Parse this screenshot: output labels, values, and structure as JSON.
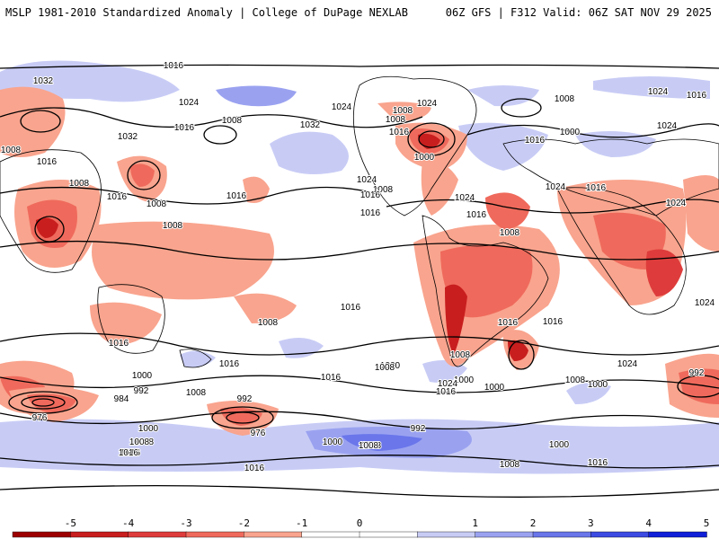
{
  "header": {
    "left_title": "MSLP 1981-2010 Standardized Anomaly | College of DuPage NEXLAB",
    "right_title": "06Z GFS | F312 Valid: 06Z SAT NOV 29 2025"
  },
  "colors": {
    "neg_strong": "#b51414",
    "neg_mid": "#e34a4a",
    "neg_light": "#f5a08c",
    "neutral": "#ffffff",
    "pos_light": "#c8ccf5",
    "pos_mid": "#8e96ee",
    "pos_strong": "#4c5ae4",
    "isobar": "#000000",
    "coast": "#000000"
  },
  "map": {
    "contour_labels": [
      "1016",
      "1032",
      "1024",
      "1008",
      "1016",
      "1024",
      "1032",
      "1008",
      "1008",
      "1016",
      "1024",
      "1032",
      "1008",
      "1016",
      "1008",
      "1016",
      "1008",
      "1016",
      "1024",
      "1008",
      "1016",
      "1024",
      "1000",
      "1024",
      "1016",
      "1024",
      "1024",
      "1008",
      "1000",
      "1016",
      "1024",
      "1016",
      "1016",
      "1008",
      "1016",
      "1008",
      "1016",
      "1008",
      "1016",
      "1024",
      "1008",
      "1016",
      "1000",
      "1000",
      "1024",
      "1008",
      "992",
      "1008",
      "1000",
      "1016",
      "1000",
      "1016",
      "1008",
      "1000",
      "976",
      "984",
      "992",
      "1000",
      "1008",
      "992",
      "976",
      "1000",
      "1008",
      "1016",
      "1008",
      "1016",
      "1000",
      "1008",
      "992",
      "1016",
      "1008",
      "1016",
      "1016",
      "1016",
      "1024"
    ]
  },
  "colorbar": {
    "ticks": [
      "-5",
      "-4",
      "-3",
      "-2",
      "-1",
      "0",
      "1",
      "2",
      "3",
      "4",
      "5"
    ],
    "bins": [
      "#9c0000",
      "#c81e1e",
      "#de3c3c",
      "#ef6a5c",
      "#f9a48e",
      "#ffffff",
      "#ffffff",
      "#c8ccf5",
      "#9aa2f0",
      "#6a76ea",
      "#3c4ce2",
      "#1020d8"
    ]
  }
}
